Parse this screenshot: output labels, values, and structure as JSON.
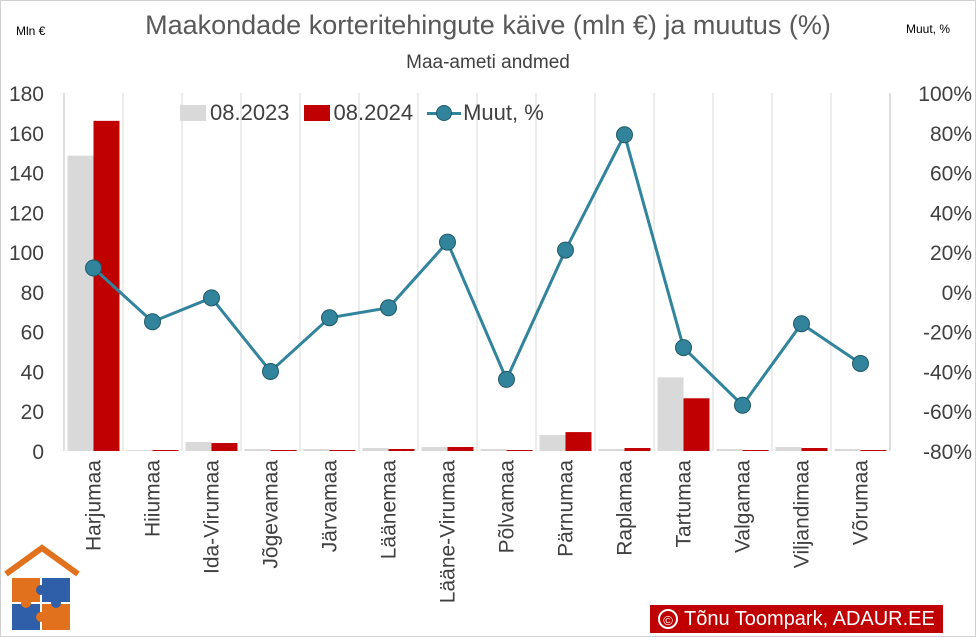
{
  "chart_data": {
    "type": "bar",
    "title": "Maakondade korteritehingute käive (mln €) ja muutus (%)",
    "subtitle": "Maa-ameti andmed",
    "left_axis_unit": "Mln €",
    "right_axis_unit": "Muut, %",
    "categories": [
      "Harjumaa",
      "Hiiumaa",
      "Ida-Virumaa",
      "Jõgevamaa",
      "Järvamaa",
      "Läänemaa",
      "Lääne-Virumaa",
      "Põlvamaa",
      "Pärnumaa",
      "Raplamaa",
      "Tartumaa",
      "Valgamaa",
      "Viljandimaa",
      "Võrumaa"
    ],
    "series": [
      {
        "name": "08.2023",
        "type": "bar",
        "axis": "left",
        "color": "#d9d9d9",
        "values": [
          148.5,
          0.5,
          4.5,
          1.0,
          1.0,
          1.5,
          2.0,
          1.0,
          8.0,
          1.0,
          37.0,
          1.0,
          2.0,
          1.0
        ]
      },
      {
        "name": "08.2024",
        "type": "bar",
        "axis": "left",
        "color": "#c00000",
        "values": [
          166.0,
          0.5,
          4.0,
          0.5,
          0.5,
          1.0,
          2.0,
          0.5,
          9.5,
          1.5,
          26.5,
          0.5,
          1.5,
          0.5
        ]
      },
      {
        "name": "Muut, %",
        "type": "line",
        "axis": "right",
        "color": "#31849b",
        "values": [
          12,
          -15,
          -3,
          -40,
          -13,
          -8,
          25,
          -44,
          21,
          79,
          -28,
          -57,
          -16,
          -36
        ]
      }
    ],
    "left_ylim": [
      0,
      180
    ],
    "left_ticks": [
      "0",
      "20",
      "40",
      "60",
      "80",
      "100",
      "120",
      "140",
      "160",
      "180"
    ],
    "right_ylim": [
      -80,
      100
    ],
    "right_ticks": [
      "-80%",
      "-60%",
      "-40%",
      "-20%",
      "0%",
      "20%",
      "40%",
      "60%",
      "80%",
      "100%"
    ],
    "grid": "vertical",
    "legend_position": "top-left"
  },
  "credit": {
    "icon": "©",
    "text": "Tõnu Toompark, ADAUR.EE"
  }
}
